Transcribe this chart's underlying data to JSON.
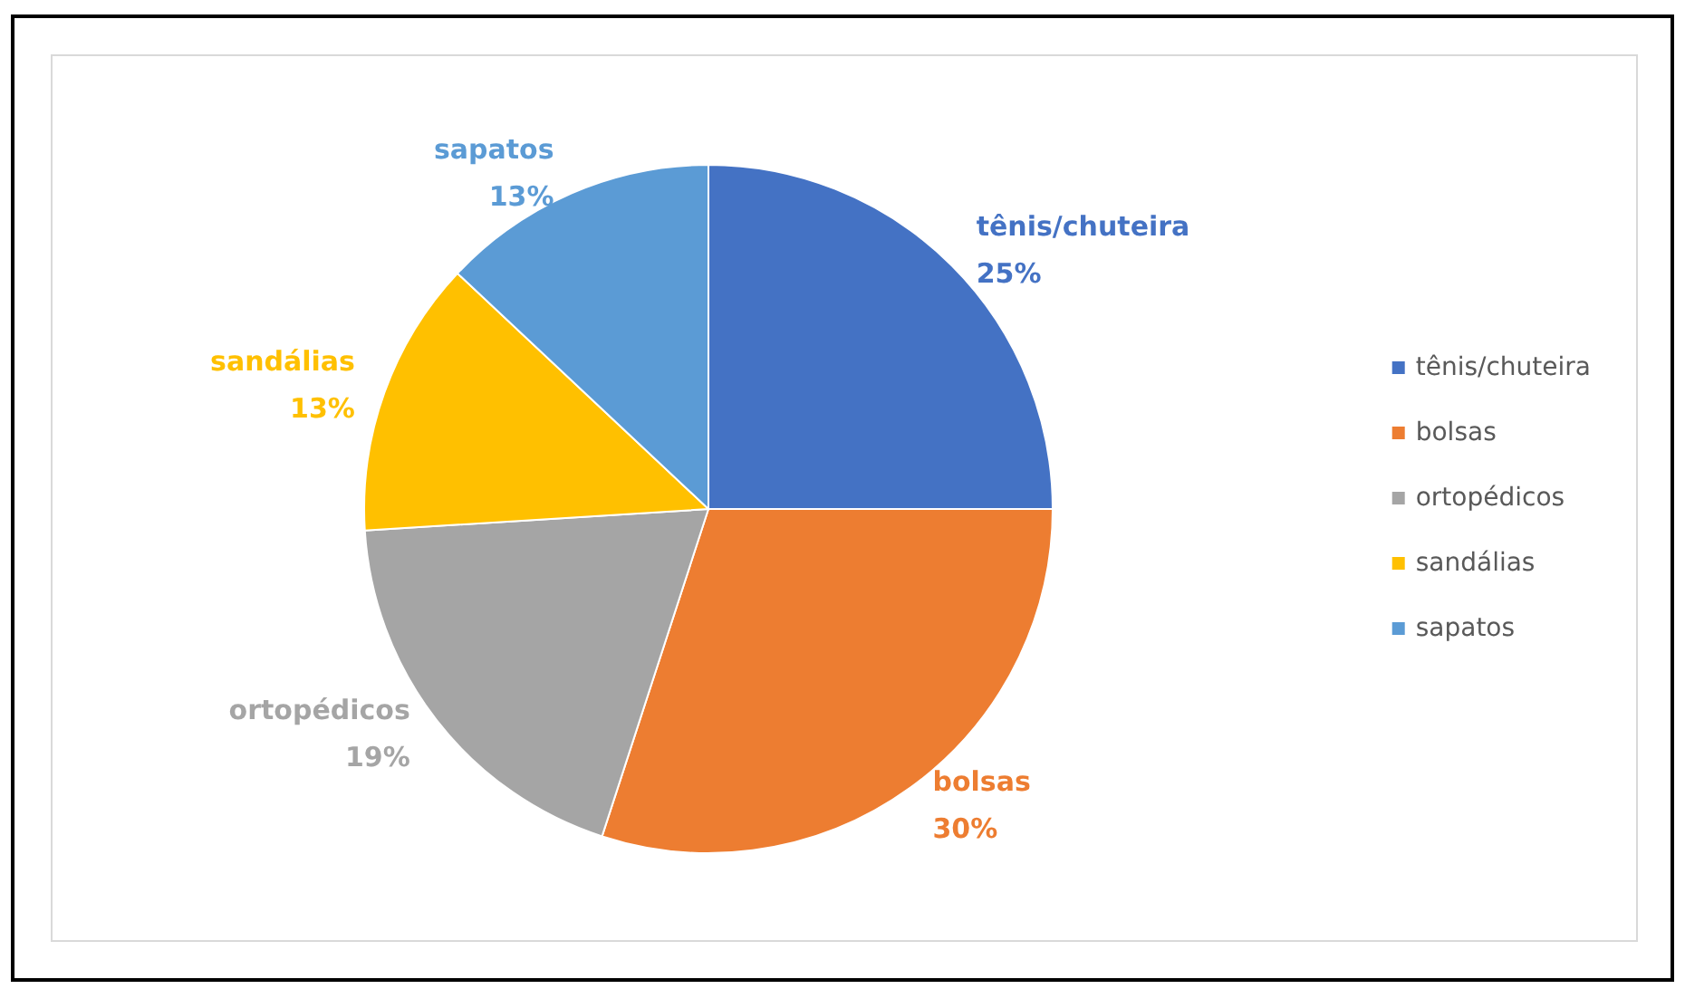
{
  "chart_data": {
    "type": "pie",
    "categories": [
      "tênis/chuteira",
      "bolsas",
      "ortopédicos",
      "sandálias",
      "sapatos"
    ],
    "values": [
      25,
      30,
      19,
      13,
      13
    ],
    "colors": [
      "#4472c4",
      "#ed7d31",
      "#a5a5a5",
      "#ffc000",
      "#5b9bd5"
    ],
    "value_labels": [
      "25%",
      "30%",
      "19%",
      "13%",
      "13%"
    ],
    "legend": "right"
  }
}
